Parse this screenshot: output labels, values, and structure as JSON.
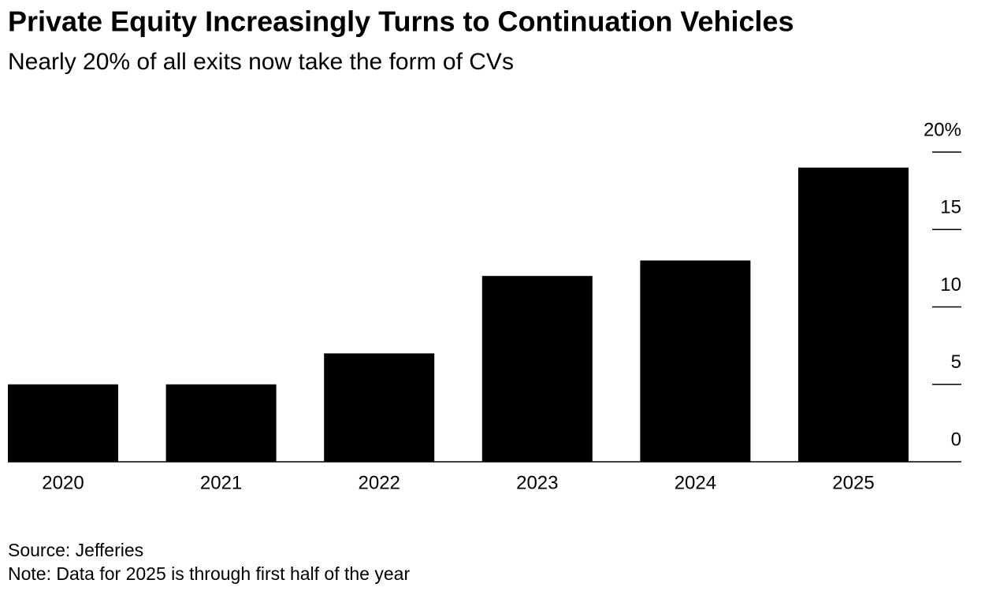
{
  "chart_data": {
    "type": "bar",
    "title": "Private Equity Increasingly Turns to Continuation Vehicles",
    "subtitle": "Nearly 20% of all exits now take the form of CVs",
    "categories": [
      "2020",
      "2021",
      "2022",
      "2023",
      "2024",
      "2025"
    ],
    "values": [
      5,
      5,
      7,
      12,
      13,
      19
    ],
    "color": "#000000",
    "ylim": [
      0,
      20
    ],
    "yticks": [
      0,
      5,
      10,
      15,
      {
        "value": 20,
        "label": "20%"
      }
    ],
    "source": "Source: Jefferies",
    "note": "Note: Data for 2025 is through first half of the year"
  }
}
